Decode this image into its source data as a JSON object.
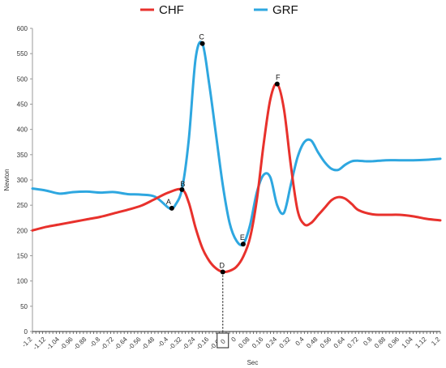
{
  "chart_data": {
    "type": "line",
    "xlabel": "Sec",
    "ylabel": "Newton",
    "xlim": [
      -1.2,
      1.2
    ],
    "ylim": [
      0,
      600
    ],
    "x_ticks": [
      "-1.2",
      "-1.12",
      "-1.04",
      "-0.96",
      "-0.88",
      "-0.8",
      "-0.72",
      "-0.64",
      "-0.56",
      "-0.48",
      "-0.4",
      "-0.32",
      "-0.24",
      "-0.16",
      "-0.08",
      "0",
      "0.08",
      "0.16",
      "0.24",
      "0.32",
      "0.4",
      "0.48",
      "0.56",
      "0.64",
      "0.72",
      "0.8",
      "0.88",
      "0.96",
      "1.04",
      "1.12",
      "1.2"
    ],
    "y_ticks": [
      "0",
      "50",
      "100",
      "150",
      "200",
      "250",
      "300",
      "350",
      "400",
      "450",
      "500",
      "550",
      "600"
    ],
    "legend_position": "top",
    "grid": false,
    "series": [
      {
        "name": "CHF",
        "color": "#e8312c",
        "x": [
          -1.2,
          -1.12,
          -1.04,
          -0.96,
          -0.88,
          -0.8,
          -0.72,
          -0.64,
          -0.56,
          -0.48,
          -0.4,
          -0.32,
          -0.28,
          -0.24,
          -0.2,
          -0.16,
          -0.12,
          -0.08,
          -0.04,
          0,
          0.04,
          0.08,
          0.12,
          0.16,
          0.2,
          0.24,
          0.28,
          0.32,
          0.36,
          0.4,
          0.44,
          0.48,
          0.52,
          0.56,
          0.6,
          0.64,
          0.68,
          0.72,
          0.8,
          0.88,
          0.96,
          1.04,
          1.12,
          1.2
        ],
        "values": [
          200,
          207,
          212,
          217,
          222,
          227,
          234,
          241,
          249,
          262,
          275,
          281,
          255,
          205,
          165,
          140,
          125,
          118,
          120,
          128,
          148,
          185,
          260,
          370,
          460,
          490,
          440,
          330,
          240,
          212,
          215,
          230,
          245,
          260,
          266,
          263,
          252,
          240,
          232,
          231,
          231,
          228,
          223,
          220
        ]
      },
      {
        "name": "GRF",
        "color": "#2ea7e0",
        "x": [
          -1.2,
          -1.12,
          -1.04,
          -0.96,
          -0.88,
          -0.8,
          -0.72,
          -0.64,
          -0.56,
          -0.48,
          -0.4,
          -0.38,
          -0.36,
          -0.32,
          -0.28,
          -0.24,
          -0.2,
          -0.16,
          -0.12,
          -0.08,
          -0.04,
          0,
          0.04,
          0.08,
          0.12,
          0.16,
          0.2,
          0.24,
          0.28,
          0.32,
          0.36,
          0.4,
          0.44,
          0.48,
          0.52,
          0.56,
          0.6,
          0.64,
          0.68,
          0.72,
          0.76,
          0.8,
          0.88,
          0.96,
          1.04,
          1.12,
          1.2
        ],
        "values": [
          283,
          279,
          273,
          276,
          277,
          275,
          276,
          272,
          271,
          267,
          245,
          244,
          250,
          282,
          380,
          540,
          570,
          490,
          390,
          290,
          215,
          180,
          173,
          210,
          275,
          310,
          305,
          250,
          235,
          290,
          345,
          375,
          378,
          355,
          335,
          322,
          320,
          330,
          337,
          338,
          337,
          337,
          339,
          339,
          339,
          340,
          342
        ]
      }
    ],
    "annotations": [
      {
        "label": "A",
        "x": -0.38,
        "y": 244,
        "series": "GRF"
      },
      {
        "label": "B",
        "x": -0.32,
        "y": 281,
        "series": "CHF"
      },
      {
        "label": "C",
        "x": -0.2,
        "y": 570,
        "series": "GRF"
      },
      {
        "label": "D",
        "x": -0.08,
        "y": 118,
        "series": "CHF"
      },
      {
        "label": "E",
        "x": 0.04,
        "y": 173,
        "series": "GRF"
      },
      {
        "label": "F",
        "x": 0.24,
        "y": 490,
        "series": "CHF"
      }
    ],
    "zero_marker_label": "0"
  }
}
